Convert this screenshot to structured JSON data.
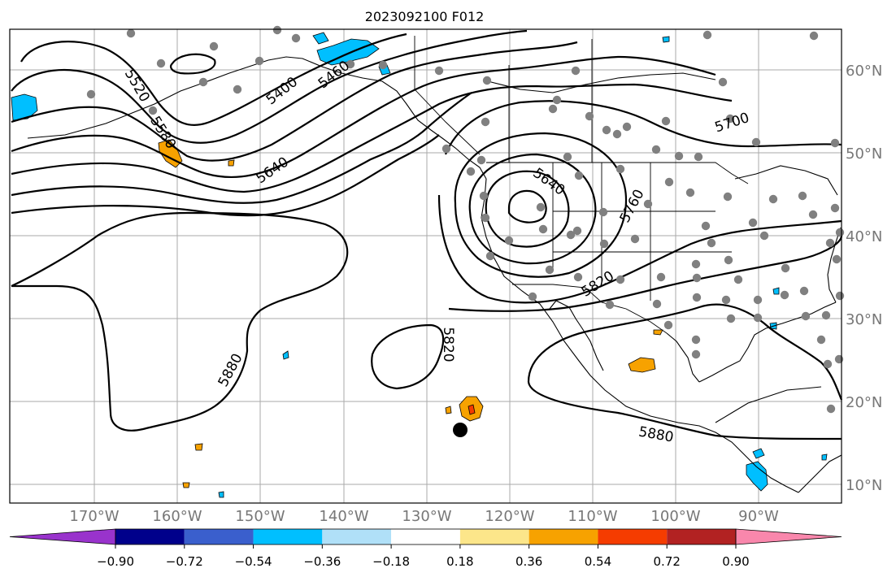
{
  "title": "2023092100 F012",
  "lon_labels": [
    "170°W",
    "160°W",
    "150°W",
    "140°W",
    "130°W",
    "120°W",
    "110°W",
    "100°W",
    "90°W"
  ],
  "lat_labels": [
    "60°N",
    "50°N",
    "40°N",
    "30°N",
    "20°N",
    "10°N"
  ],
  "contour_labels": [
    "5520",
    "5580",
    "5400",
    "5460",
    "5640",
    "5700",
    "5640",
    "5760",
    "5820",
    "5820",
    "5880",
    "5880"
  ],
  "colorbar": {
    "ticks": [
      "−0.90",
      "−0.72",
      "−0.54",
      "−0.36",
      "−0.18",
      "0.18",
      "0.36",
      "0.54",
      "0.72",
      "0.90"
    ],
    "colors": [
      "#9933cc",
      "#00008b",
      "#3a5fcd",
      "#00bfff",
      "#b0e0f8",
      "#ffffff",
      "#fce68a",
      "#f7a200",
      "#f53c00",
      "#b22222",
      "#f987ac"
    ]
  },
  "colors": {
    "contour": "#000000",
    "station": "#808080",
    "grid": "#aaaaaa",
    "land": "#000000",
    "pos_low": "#f7a200",
    "pos_mid": "#f53c00",
    "neg_low": "#00bfff",
    "neg_high": "#b0e0f8"
  }
}
